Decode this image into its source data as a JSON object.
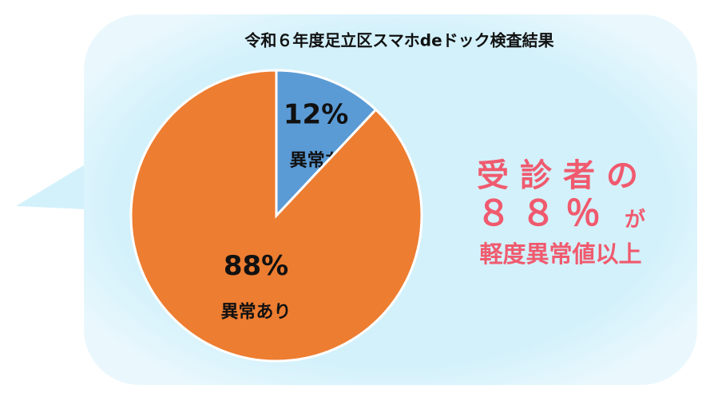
{
  "chart_data": {
    "type": "pie",
    "title": "令和６年度足立区スマホdeドック検査結果",
    "categories": [
      "異常なし",
      "異常あり"
    ],
    "values": [
      12,
      88
    ],
    "value_labels": [
      "12%",
      "88%"
    ],
    "colors": [
      "#5b9bd5",
      "#ed7d31"
    ],
    "annotation": [
      "受診者の",
      "８８％",
      "が",
      "軽度異常値以上"
    ]
  }
}
